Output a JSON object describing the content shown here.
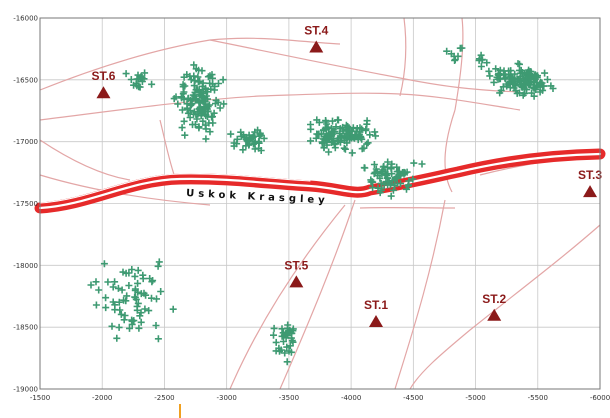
{
  "map": {
    "x_ticks": [
      "-1500",
      "-2000",
      "-2500",
      "-3000",
      "-3500",
      "-4000",
      "-4500",
      "-5000",
      "-5500",
      "-6000"
    ],
    "y_ticks": [
      "-16000",
      "-16500",
      "-17000",
      "-17500",
      "-18000",
      "-18500",
      "-19000"
    ],
    "road_label": "Uskok Krasgley",
    "stations": [
      {
        "id": "ST.1",
        "name": "ST.1",
        "x": -4200,
        "y": -18450
      },
      {
        "id": "ST.2",
        "name": "ST.2",
        "x": -5150,
        "y": -18400
      },
      {
        "id": "ST.3",
        "name": "ST.3",
        "x": -5920,
        "y": -17400
      },
      {
        "id": "ST.4",
        "name": "ST.4",
        "x": -3720,
        "y": -16230
      },
      {
        "id": "ST.5",
        "name": "ST.5",
        "x": -3560,
        "y": -18130
      },
      {
        "id": "ST.6",
        "name": "ST.6",
        "x": -2010,
        "y": -16600
      }
    ],
    "colors": {
      "grid": "#c8c8c8",
      "frame": "#777777",
      "roads": "#e3a6a6",
      "highway": "#e62a2a",
      "station": "#8b1a1a",
      "markers": "#3e9a72"
    }
  }
}
